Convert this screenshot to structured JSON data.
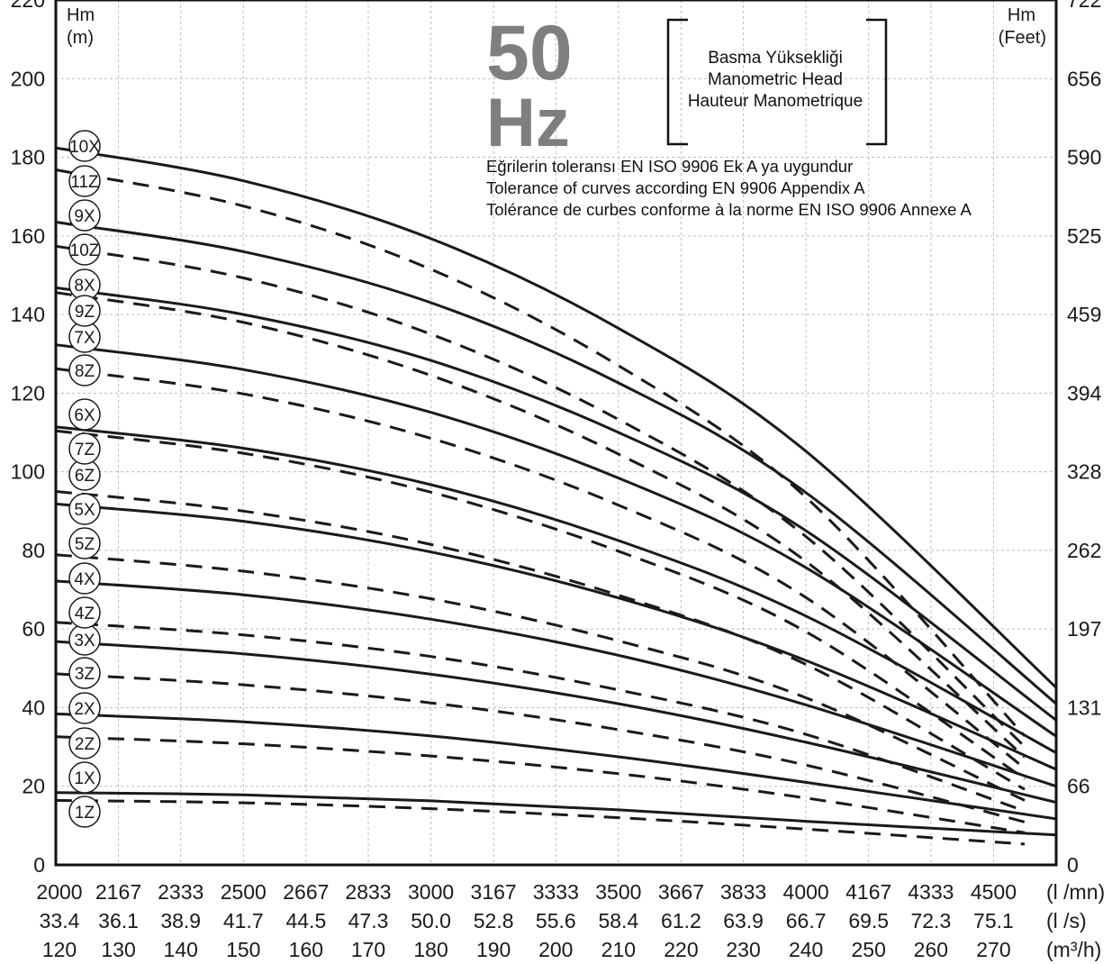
{
  "chart_data": {
    "type": "line",
    "title_frequency": {
      "value": "50",
      "unit": "Hz"
    },
    "legend_box": [
      "Basma Yüksekliği",
      "Manometric Head",
      "Hauteur Manometrique"
    ],
    "tolerance_notes": [
      "Eğrilerin toleransı EN ISO 9906 Ek A ya uygundur",
      "Tolerance of curves according EN 9906 Appendix A",
      "Tolérance de curbes conforme à la norme EN ISO 9906 Annexe A"
    ],
    "y_left": {
      "unit_line1": "Hm",
      "unit_line2": "(m)",
      "range": [
        0,
        220
      ],
      "ticks": [
        "0",
        "20",
        "40",
        "60",
        "80",
        "100",
        "120",
        "140",
        "160",
        "180",
        "200",
        "220"
      ]
    },
    "y_right": {
      "unit_line1": "Hm",
      "unit_line2": "(Feet)",
      "ticks": [
        "0",
        "66",
        "131",
        "197",
        "262",
        "328",
        "394",
        "459",
        "525",
        "590",
        "656",
        "722"
      ]
    },
    "x_axes": [
      {
        "unit": "(l /mn)",
        "ticks": [
          "2000",
          "2167",
          "2333",
          "2500",
          "2667",
          "2833",
          "3000",
          "3167",
          "3333",
          "3500",
          "3667",
          "3833",
          "4000",
          "4167",
          "4333",
          "4500"
        ]
      },
      {
        "unit": "(l /s)",
        "ticks": [
          "33.4",
          "36.1",
          "38.9",
          "41.7",
          "44.5",
          "47.3",
          "50.0",
          "52.8",
          "55.6",
          "58.4",
          "61.2",
          "63.9",
          "66.7",
          "69.5",
          "72.3",
          "75.1"
        ]
      },
      {
        "unit": "(m³/h)",
        "ticks": [
          "120",
          "130",
          "140",
          "150",
          "160",
          "170",
          "180",
          "190",
          "200",
          "210",
          "220",
          "230",
          "240",
          "250",
          "260",
          "270"
        ]
      }
    ],
    "x_range": [
      2000,
      4667
    ],
    "grid": true,
    "series": [
      {
        "name": "1X",
        "style": "solid",
        "points": [
          [
            2000,
            18.4
          ],
          [
            2500,
            17.8
          ],
          [
            3000,
            16.3
          ],
          [
            3500,
            14.0
          ],
          [
            4000,
            11.1
          ],
          [
            4667,
            7.6
          ]
        ]
      },
      {
        "name": "1Z",
        "style": "dashed",
        "points": [
          [
            2000,
            16.4
          ],
          [
            2500,
            15.8
          ],
          [
            3000,
            14.3
          ],
          [
            3500,
            12.0
          ],
          [
            4000,
            9.1
          ],
          [
            4583,
            5.3
          ]
        ]
      },
      {
        "name": "2X",
        "style": "solid",
        "points": [
          [
            2000,
            38.4
          ],
          [
            2500,
            36.4
          ],
          [
            3000,
            32.8
          ],
          [
            3500,
            27.5
          ],
          [
            4000,
            21.0
          ],
          [
            4667,
            11.7
          ]
        ]
      },
      {
        "name": "2Z",
        "style": "dashed",
        "points": [
          [
            2000,
            32.6
          ],
          [
            2500,
            30.8
          ],
          [
            3000,
            27.7
          ],
          [
            3500,
            23.2
          ],
          [
            4000,
            17.0
          ],
          [
            4583,
            8.2
          ]
        ]
      },
      {
        "name": "3X",
        "style": "solid",
        "points": [
          [
            2000,
            56.8
          ],
          [
            2500,
            53.7
          ],
          [
            3000,
            48.5
          ],
          [
            3500,
            41.0
          ],
          [
            4000,
            31.2
          ],
          [
            4667,
            15.9
          ]
        ]
      },
      {
        "name": "3Z",
        "style": "dashed",
        "points": [
          [
            2000,
            48.6
          ],
          [
            2500,
            45.8
          ],
          [
            3000,
            41.2
          ],
          [
            3500,
            34.4
          ],
          [
            4000,
            25.4
          ],
          [
            4583,
            10.9
          ]
        ]
      },
      {
        "name": "4X",
        "style": "solid",
        "points": [
          [
            2000,
            72.2
          ],
          [
            2500,
            68.7
          ],
          [
            3000,
            62.5
          ],
          [
            3500,
            53.3
          ],
          [
            4000,
            40.7
          ],
          [
            4667,
            20.0
          ]
        ]
      },
      {
        "name": "4Z",
        "style": "dashed",
        "points": [
          [
            2000,
            61.7
          ],
          [
            2500,
            58.5
          ],
          [
            3000,
            53.0
          ],
          [
            3500,
            44.5
          ],
          [
            4000,
            33.2
          ],
          [
            4583,
            13.7
          ]
        ]
      },
      {
        "name": "5X",
        "style": "solid",
        "points": [
          [
            2000,
            91.8
          ],
          [
            2500,
            87.4
          ],
          [
            3000,
            79.6
          ],
          [
            3500,
            67.9
          ],
          [
            4000,
            52.0
          ],
          [
            4667,
            24.3
          ]
        ]
      },
      {
        "name": "5Z",
        "style": "dashed",
        "points": [
          [
            2000,
            78.9
          ],
          [
            2500,
            74.7
          ],
          [
            3000,
            67.7
          ],
          [
            3500,
            57.0
          ],
          [
            4000,
            42.5
          ],
          [
            4583,
            16.4
          ]
        ]
      },
      {
        "name": "6X",
        "style": "solid",
        "points": [
          [
            2000,
            111.4
          ],
          [
            2500,
            106.0
          ],
          [
            3000,
            96.7
          ],
          [
            3500,
            82.5
          ],
          [
            4000,
            63.3
          ],
          [
            4667,
            28.5
          ]
        ]
      },
      {
        "name": "6Z",
        "style": "dashed",
        "points": [
          [
            2000,
            95.0
          ],
          [
            2500,
            90.0
          ],
          [
            3000,
            81.5
          ],
          [
            3500,
            68.6
          ],
          [
            4000,
            51.0
          ],
          [
            4583,
            19.2
          ]
        ]
      },
      {
        "name": "7X",
        "style": "solid",
        "points": [
          [
            2000,
            132.3
          ],
          [
            2500,
            126.0
          ],
          [
            3000,
            115.1
          ],
          [
            3500,
            98.4
          ],
          [
            4000,
            75.6
          ],
          [
            4667,
            32.7
          ]
        ]
      },
      {
        "name": "7Z",
        "style": "dashed",
        "points": [
          [
            2000,
            110.4
          ],
          [
            2500,
            104.7
          ],
          [
            3000,
            94.8
          ],
          [
            3500,
            79.8
          ],
          [
            4000,
            59.3
          ],
          [
            4583,
            21.9
          ]
        ]
      },
      {
        "name": "8X",
        "style": "solid",
        "points": [
          [
            2000,
            146.8
          ],
          [
            2500,
            140.0
          ],
          [
            3000,
            128.3
          ],
          [
            3500,
            110.0
          ],
          [
            4000,
            85.0
          ],
          [
            4667,
            36.8
          ]
        ]
      },
      {
        "name": "8Z",
        "style": "dashed",
        "points": [
          [
            2000,
            126.2
          ],
          [
            2500,
            119.8
          ],
          [
            3000,
            108.5
          ],
          [
            3500,
            91.5
          ],
          [
            4000,
            68.0
          ],
          [
            4583,
            24.6
          ]
        ]
      },
      {
        "name": "9X",
        "style": "solid",
        "points": [
          [
            2000,
            163.5
          ],
          [
            2500,
            156.0
          ],
          [
            3000,
            143.0
          ],
          [
            3500,
            122.6
          ],
          [
            4000,
            94.7
          ],
          [
            4667,
            41.0
          ]
        ]
      },
      {
        "name": "9Z",
        "style": "dashed",
        "points": [
          [
            2000,
            145.6
          ],
          [
            2500,
            138.0
          ],
          [
            3000,
            124.5
          ],
          [
            3500,
            104.5
          ],
          [
            4000,
            77.2
          ],
          [
            4583,
            27.4
          ]
        ]
      },
      {
        "name": "10X",
        "style": "solid",
        "points": [
          [
            2000,
            182.4
          ],
          [
            2500,
            174.0
          ],
          [
            3000,
            159.3
          ],
          [
            3500,
            136.5
          ],
          [
            4000,
            105.2
          ],
          [
            4667,
            45.1
          ]
        ]
      },
      {
        "name": "10Z",
        "style": "dashed",
        "points": [
          [
            2000,
            157.4
          ],
          [
            2500,
            149.3
          ],
          [
            3000,
            135.0
          ],
          [
            3500,
            113.3
          ],
          [
            4000,
            83.5
          ],
          [
            4583,
            30.1
          ]
        ]
      },
      {
        "name": "11Z",
        "style": "dashed",
        "points": [
          [
            2000,
            176.8
          ],
          [
            2500,
            167.6
          ],
          [
            3000,
            151.5
          ],
          [
            3500,
            127.0
          ],
          [
            4000,
            93.5
          ],
          [
            4583,
            32.8
          ]
        ]
      }
    ]
  }
}
